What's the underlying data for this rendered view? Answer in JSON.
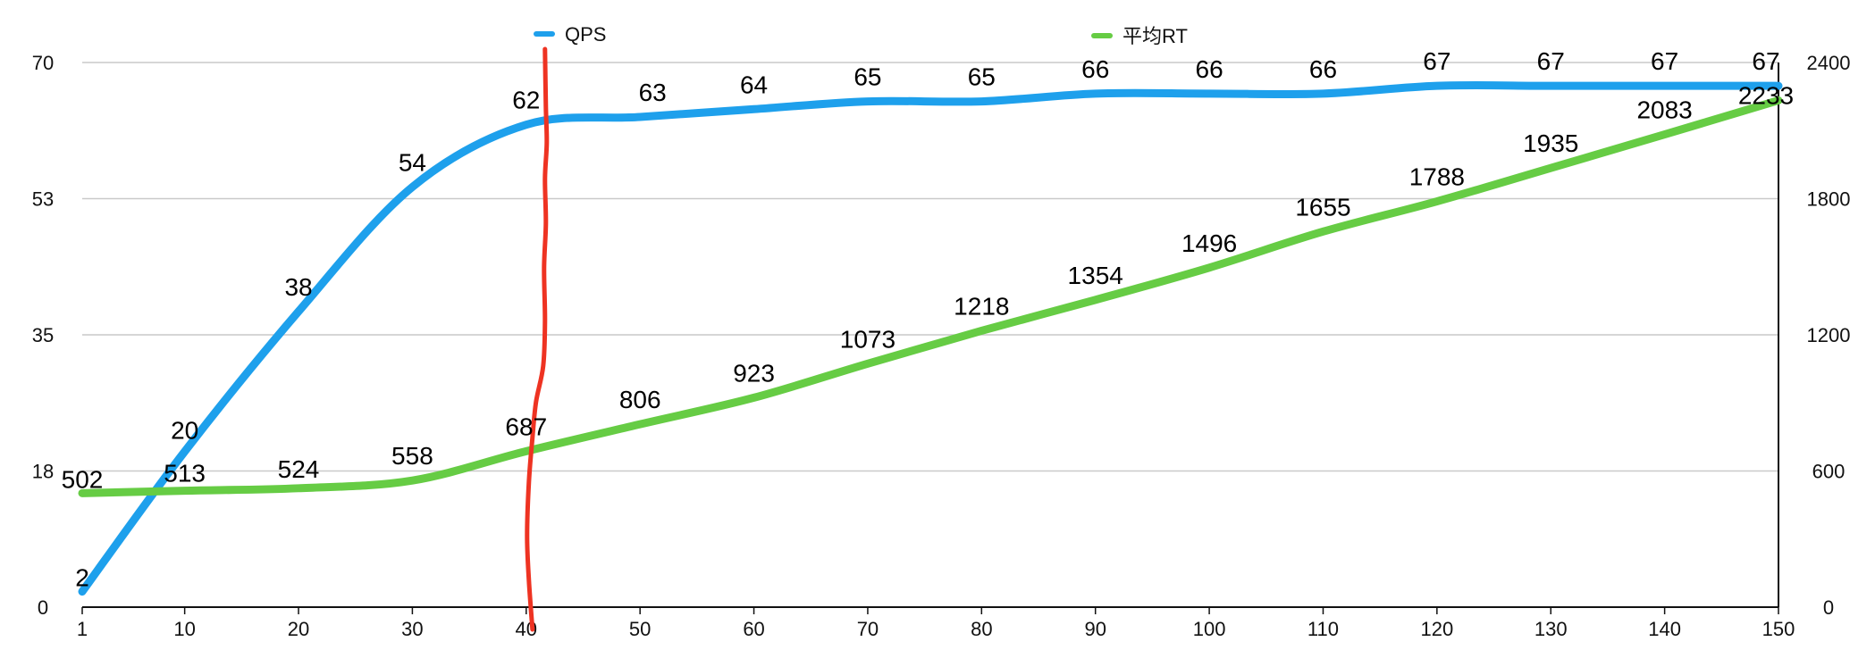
{
  "chart_data": {
    "type": "line",
    "x": [
      1,
      10,
      20,
      30,
      40,
      50,
      60,
      70,
      80,
      90,
      100,
      110,
      120,
      130,
      140,
      150
    ],
    "x_ticks": [
      "1",
      "10",
      "20",
      "30",
      "40",
      "50",
      "60",
      "70",
      "80",
      "90",
      "100",
      "110",
      "120",
      "130",
      "140",
      "150"
    ],
    "xlim": [
      1,
      150
    ],
    "y_left": {
      "ticks": [
        "0",
        "18",
        "35",
        "53",
        "70"
      ],
      "range": [
        0,
        70
      ]
    },
    "y_right": {
      "ticks": [
        "0",
        "600",
        "1200",
        "1800",
        "2400"
      ],
      "range": [
        0,
        2400
      ]
    },
    "series": [
      {
        "name": "QPS",
        "axis": "left",
        "color": "#1ea0ec",
        "values": [
          2,
          20,
          38,
          54,
          62,
          63,
          64,
          65,
          65,
          66,
          66,
          66,
          67,
          67,
          67,
          67
        ],
        "labels": [
          "2",
          "20",
          "38",
          "54",
          "62",
          "63",
          "64",
          "65",
          "65",
          "66",
          "66",
          "66",
          "67",
          "67",
          "67",
          "67"
        ]
      },
      {
        "name": "平均RT",
        "axis": "right",
        "color": "#66cc44",
        "values": [
          502,
          513,
          524,
          558,
          687,
          806,
          923,
          1073,
          1218,
          1354,
          1496,
          1655,
          1788,
          1935,
          2083,
          2233
        ],
        "labels": [
          "502",
          "513",
          "524",
          "558",
          "687",
          "806",
          "923",
          "1073",
          "1218",
          "1354",
          "1496",
          "1655",
          "1788",
          "1935",
          "2083",
          "2233"
        ]
      }
    ],
    "annotation": {
      "type": "hand-drawn vertical line",
      "color": "#ee3322",
      "at_x": 40
    },
    "grid": true,
    "legend": "top"
  }
}
